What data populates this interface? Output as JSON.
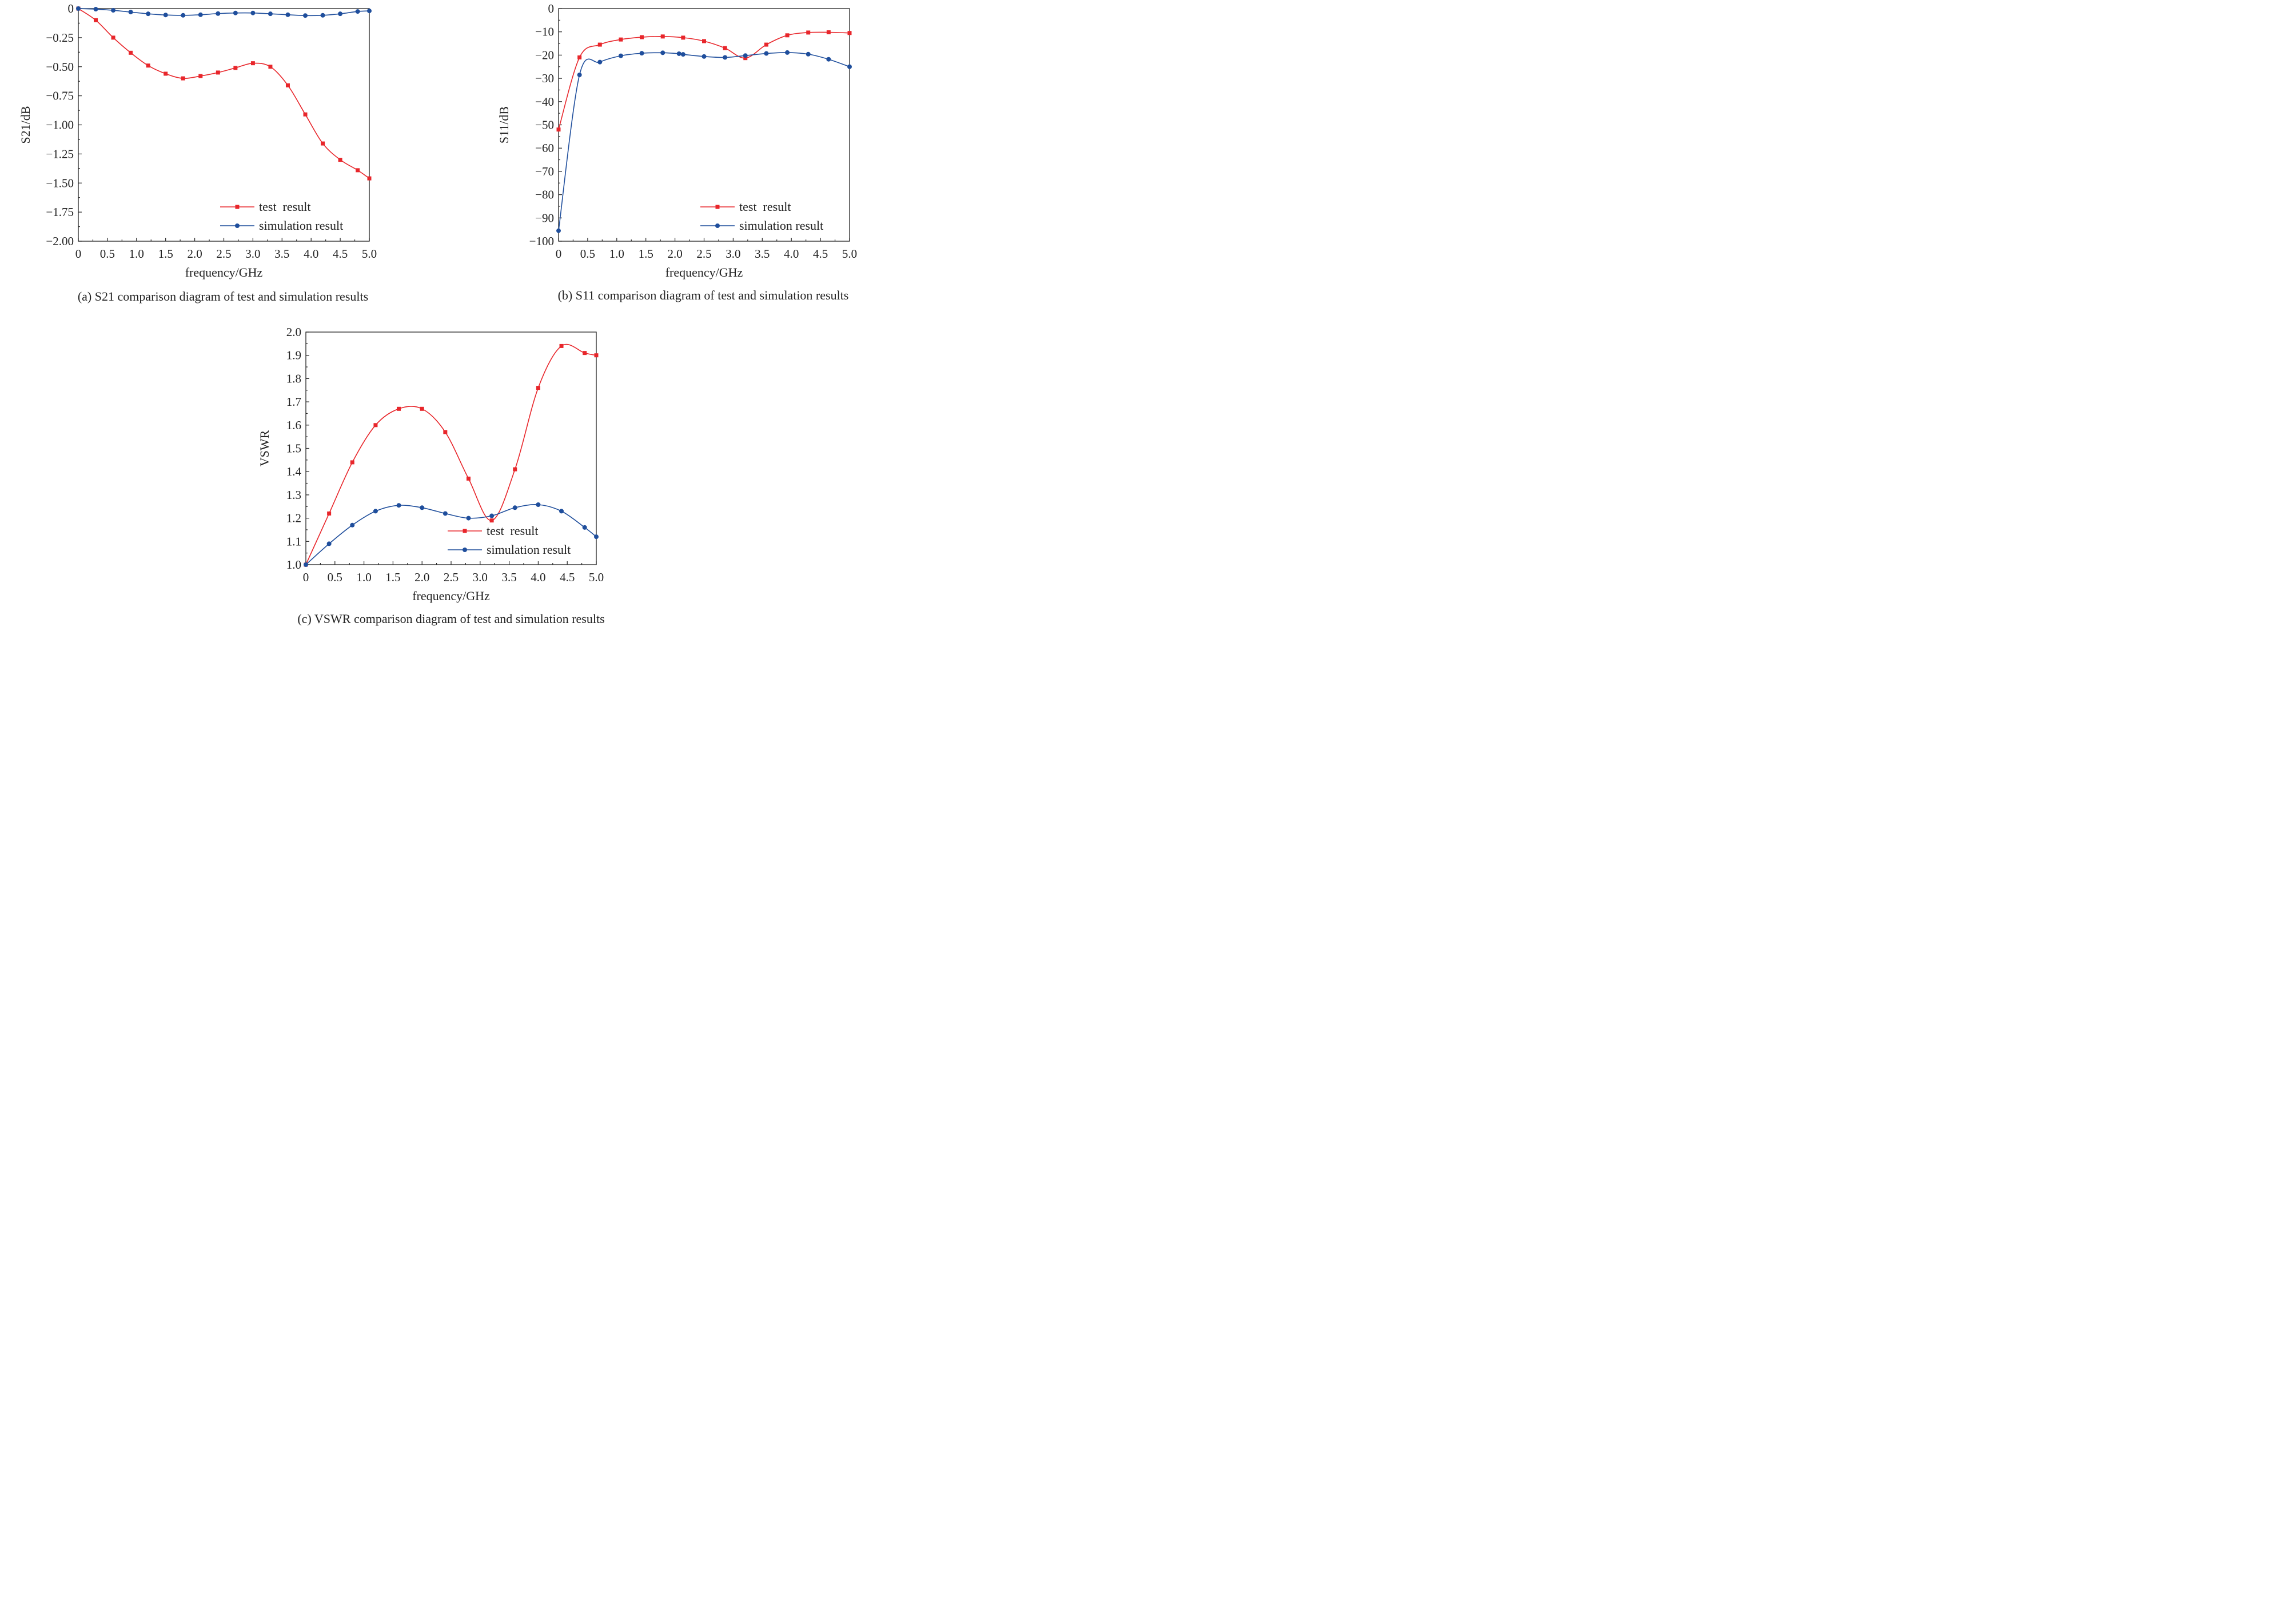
{
  "colors": {
    "test": "#e8262b",
    "simulation": "#1f4e9c"
  },
  "chart_data": [
    {
      "id": "s21",
      "type": "line",
      "caption": "(a) S21 comparison diagram of test and simulation results",
      "xlabel": "frequency/GHz",
      "ylabel": "S21/dB",
      "xlim": [
        0,
        5
      ],
      "ylim": [
        -2,
        0
      ],
      "xticks": [
        0,
        0.5,
        1,
        1.5,
        2,
        2.5,
        3,
        3.5,
        4,
        4.5,
        5
      ],
      "xtick_labels": [
        "0",
        "0.5",
        "1.0",
        "1.5",
        "2.0",
        "2.5",
        "3.0",
        "3.5",
        "4.0",
        "4.5",
        "5.0"
      ],
      "yticks": [
        0,
        -0.25,
        -0.5,
        -0.75,
        -1,
        -1.25,
        -1.5,
        -1.75,
        -2
      ],
      "ytick_labels": [
        "0",
        "−0.25",
        "−0.50",
        "−0.75",
        "−1.00",
        "−1.25",
        "−1.50",
        "−1.75",
        "−2.00"
      ],
      "legend": {
        "position": "lower-right",
        "labels": [
          "test  result",
          "simulation result"
        ]
      },
      "series": [
        {
          "name": "test  result",
          "marker": "square",
          "x": [
            0,
            0.3,
            0.6,
            0.9,
            1.2,
            1.5,
            1.8,
            2.1,
            2.4,
            2.7,
            3.0,
            3.3,
            3.6,
            3.9,
            4.2,
            4.5,
            4.8,
            5.0
          ],
          "y": [
            0,
            -0.1,
            -0.25,
            -0.38,
            -0.49,
            -0.56,
            -0.6,
            -0.58,
            -0.55,
            -0.51,
            -0.47,
            -0.5,
            -0.66,
            -0.91,
            -1.16,
            -1.3,
            -1.39,
            -1.46
          ]
        },
        {
          "name": "simulation result",
          "marker": "circle",
          "x": [
            0,
            0.3,
            0.6,
            0.9,
            1.2,
            1.5,
            1.8,
            2.1,
            2.4,
            2.7,
            3.0,
            3.3,
            3.6,
            3.9,
            4.2,
            4.5,
            4.8,
            5.0
          ],
          "y": [
            0,
            -0.005,
            -0.015,
            -0.03,
            -0.045,
            -0.055,
            -0.058,
            -0.053,
            -0.043,
            -0.038,
            -0.038,
            -0.045,
            -0.053,
            -0.06,
            -0.058,
            -0.045,
            -0.025,
            -0.02
          ]
        }
      ]
    },
    {
      "id": "s11",
      "type": "line",
      "caption": "(b) S11 comparison diagram of test and simulation results",
      "xlabel": "frequency/GHz",
      "ylabel": "S11/dB",
      "xlim": [
        0,
        5
      ],
      "ylim": [
        -100,
        0
      ],
      "xticks": [
        0,
        0.5,
        1,
        1.5,
        2,
        2.5,
        3,
        3.5,
        4,
        4.5,
        5
      ],
      "xtick_labels": [
        "0",
        "0.5",
        "1.0",
        "1.5",
        "2.0",
        "2.5",
        "3.0",
        "3.5",
        "4.0",
        "4.5",
        "5.0"
      ],
      "yticks": [
        0,
        -10,
        -20,
        -30,
        -40,
        -50,
        -60,
        -70,
        -80,
        -90,
        -100
      ],
      "ytick_labels": [
        "0",
        "−10",
        "−20",
        "−30",
        "−40",
        "−50",
        "−60",
        "−70",
        "−80",
        "−90",
        "−100"
      ],
      "legend": {
        "position": "lower-right",
        "labels": [
          "test  result",
          "simulation result"
        ]
      },
      "series": [
        {
          "name": "test  result",
          "marker": "square",
          "x": [
            0.0,
            0.36,
            0.71,
            1.07,
            1.43,
            1.79,
            2.14,
            2.5,
            2.86,
            3.21,
            3.57,
            3.93,
            4.29,
            4.64,
            5.0
          ],
          "y": [
            -52,
            -21,
            -15.5,
            -13.3,
            -12.3,
            -12.0,
            -12.5,
            -14,
            -17,
            -21.3,
            -15.5,
            -11.5,
            -10.3,
            -10.2,
            -10.5
          ]
        },
        {
          "name": "simulation result",
          "marker": "circle",
          "x": [
            0.0,
            0.36,
            0.71,
            1.07,
            1.43,
            1.79,
            2.07,
            2.14,
            2.5,
            2.86,
            3.21,
            3.57,
            3.93,
            4.29,
            4.64,
            5.0
          ],
          "y": [
            -95.5,
            -28.5,
            -23,
            -20.3,
            -19.2,
            -19.0,
            -19.4,
            -19.7,
            -20.6,
            -21,
            -20.2,
            -19.3,
            -18.9,
            -19.6,
            -21.8,
            -25
          ]
        }
      ]
    },
    {
      "id": "vswr",
      "type": "line",
      "caption": "(c) VSWR comparison diagram of test and simulation results",
      "xlabel": "frequency/GHz",
      "ylabel": "VSWR",
      "xlim": [
        0,
        5
      ],
      "ylim": [
        1,
        2
      ],
      "xticks": [
        0,
        0.5,
        1,
        1.5,
        2,
        2.5,
        3,
        3.5,
        4,
        4.5,
        5
      ],
      "xtick_labels": [
        "0",
        "0.5",
        "1.0",
        "1.5",
        "2.0",
        "2.5",
        "3.0",
        "3.5",
        "4.0",
        "4.5",
        "5.0"
      ],
      "yticks": [
        1.0,
        1.1,
        1.2,
        1.3,
        1.4,
        1.5,
        1.6,
        1.7,
        1.8,
        1.9,
        2.0
      ],
      "ytick_labels": [
        "1.0",
        "1.1",
        "1.2",
        "1.3",
        "1.4",
        "1.5",
        "1.6",
        "1.7",
        "1.8",
        "1.9",
        "2.0"
      ],
      "legend": {
        "position": "lower-right",
        "labels": [
          "test  result",
          "simulation result"
        ]
      },
      "series": [
        {
          "name": "test  result",
          "marker": "square",
          "x": [
            0,
            0.4,
            0.8,
            1.2,
            1.6,
            2.0,
            2.4,
            2.8,
            3.2,
            3.6,
            4.0,
            4.4,
            4.8,
            5.0
          ],
          "y": [
            1.0,
            1.22,
            1.44,
            1.6,
            1.67,
            1.67,
            1.57,
            1.37,
            1.19,
            1.41,
            1.76,
            1.94,
            1.91,
            1.9
          ]
        },
        {
          "name": "simulation result",
          "marker": "circle",
          "x": [
            0,
            0.4,
            0.8,
            1.2,
            1.6,
            2.0,
            2.4,
            2.8,
            3.2,
            3.6,
            4.0,
            4.4,
            4.8,
            5.0
          ],
          "y": [
            1.0,
            1.09,
            1.17,
            1.23,
            1.255,
            1.245,
            1.22,
            1.2,
            1.21,
            1.245,
            1.258,
            1.23,
            1.16,
            1.12
          ]
        }
      ]
    }
  ]
}
